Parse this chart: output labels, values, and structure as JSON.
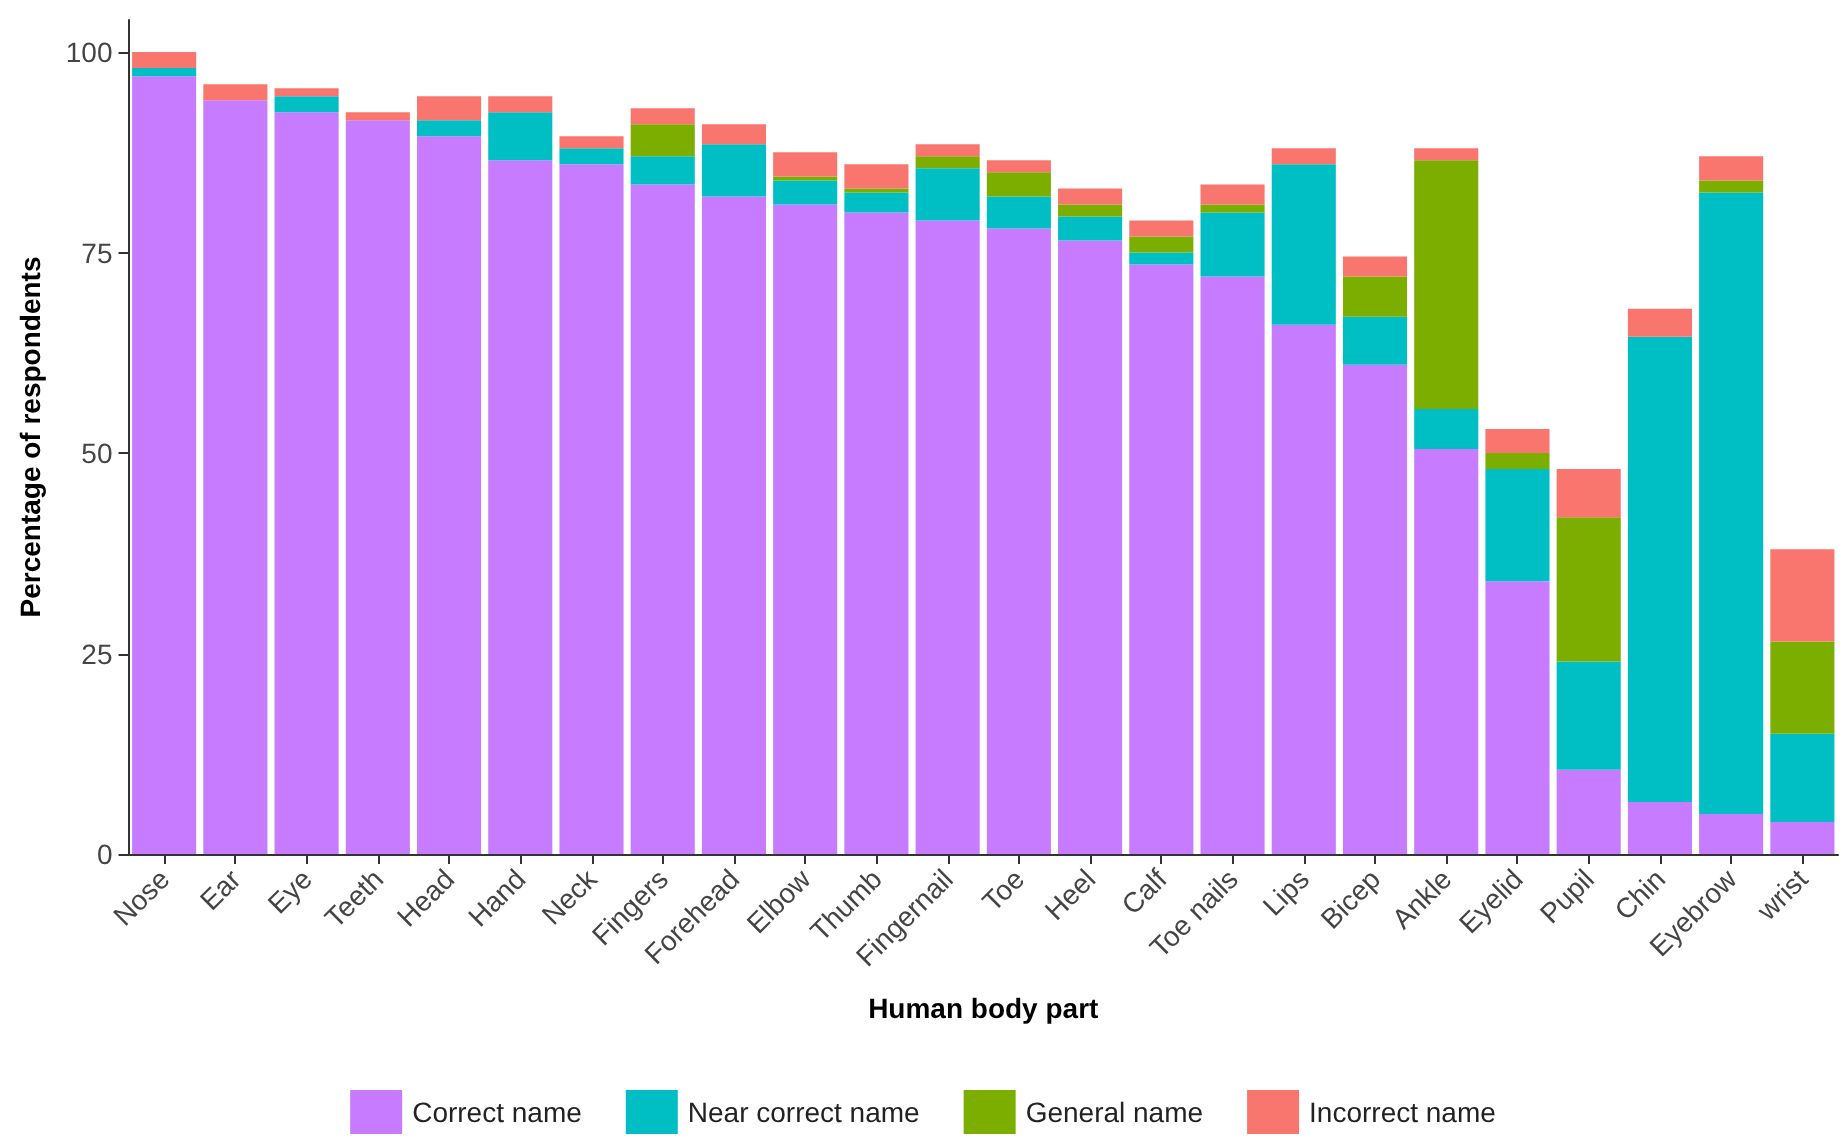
{
  "chart_data": {
    "type": "bar",
    "stacked": true,
    "xlabel": "Human body part",
    "ylabel": "Percentage of respondents",
    "categories": [
      "Nose",
      "Ear",
      "Eye",
      "Teeth",
      "Head",
      "Hand",
      "Neck",
      "Fingers",
      "Forehead",
      "Elbow",
      "Thumb",
      "Fingernail",
      "Toe",
      "Heel",
      "Calf",
      "Toe nails",
      "Lips",
      "Bicep",
      "Ankle",
      "Eyelid",
      "Pupil",
      "Chin",
      "Eyebrow",
      "wrist"
    ],
    "series": [
      {
        "name": "Correct name",
        "color": "#c77cff",
        "values": [
          97,
          94,
          92.5,
          91.5,
          89.5,
          86.5,
          86,
          83.5,
          82,
          81,
          80,
          79,
          78,
          76.5,
          73.5,
          72,
          66,
          61,
          50.5,
          34,
          10.5,
          6.5,
          5,
          4
        ]
      },
      {
        "name": "Near correct name",
        "color": "#00bfc4",
        "values": [
          1,
          0,
          2,
          0,
          2,
          6,
          2,
          3.5,
          6.5,
          3,
          2.5,
          6.5,
          4,
          3,
          1.5,
          8,
          20,
          6,
          5,
          14,
          13.5,
          58,
          77.5,
          11
        ]
      },
      {
        "name": "General name",
        "color": "#7cae00",
        "values": [
          0,
          0,
          0,
          0,
          0,
          0,
          0,
          4,
          0,
          0.5,
          0.5,
          1.5,
          3,
          1.5,
          2,
          1,
          0,
          5,
          31,
          2,
          18,
          0,
          1.5,
          11.5
        ]
      },
      {
        "name": "Incorrect name",
        "color": "#f8766d",
        "values": [
          2,
          2,
          1,
          1,
          3,
          2,
          1.5,
          2,
          2.5,
          3,
          3,
          1.5,
          1.5,
          2,
          2,
          2.5,
          2,
          2.5,
          1.5,
          3,
          6,
          3.5,
          3,
          11.5
        ]
      }
    ],
    "ylim": [
      0,
      104
    ],
    "yticks": [
      0,
      25,
      50,
      75,
      100
    ],
    "grid": false,
    "legend": "bottom"
  }
}
